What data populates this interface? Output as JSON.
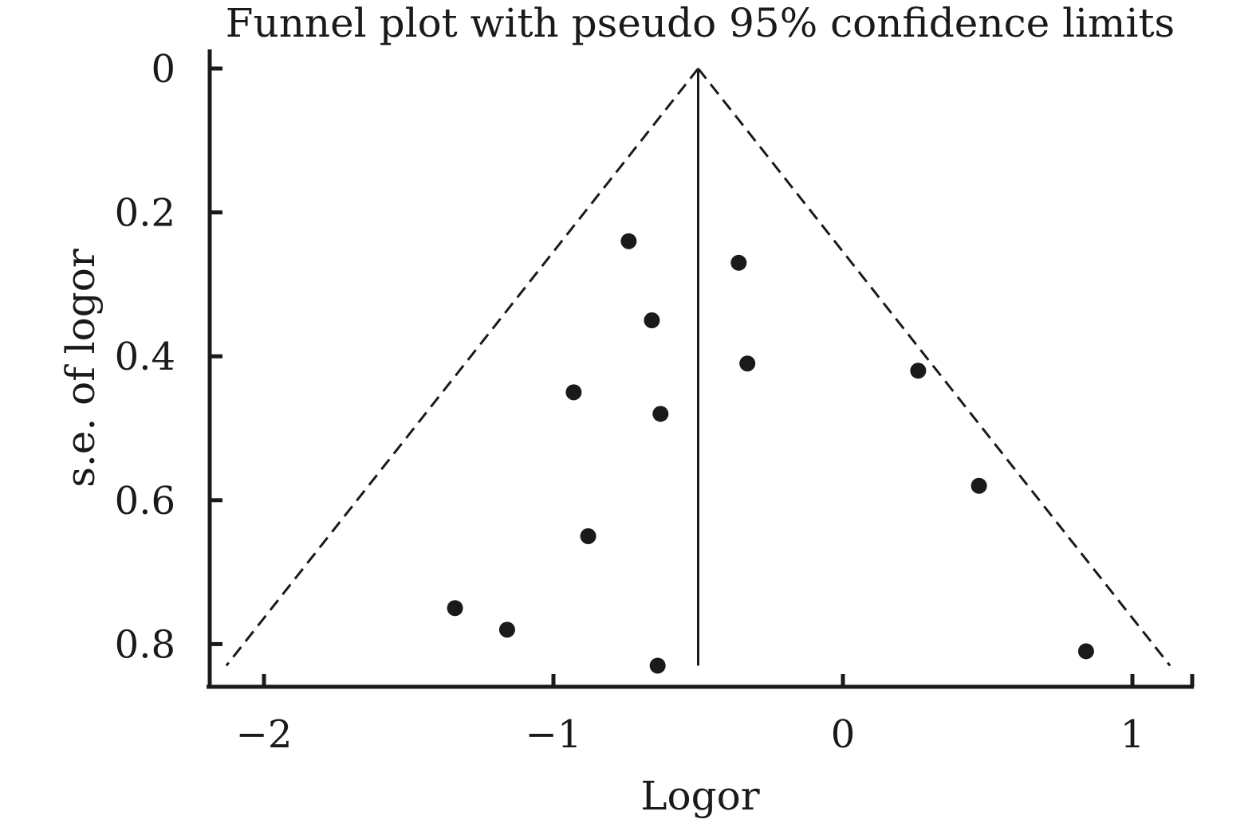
{
  "chart_data": {
    "type": "scatter",
    "title": "Funnel plot with pseudo 95% confidence limits",
    "xlabel": "Logor",
    "ylabel": "s.e. of logor",
    "xlim": [
      -2.2,
      1.2
    ],
    "ylim": [
      0,
      0.86
    ],
    "y_axis_reversed": true,
    "x_ticks": [
      {
        "value": -2,
        "label": "−2"
      },
      {
        "value": -1,
        "label": "−1"
      },
      {
        "value": 0,
        "label": "0"
      },
      {
        "value": 1,
        "label": "1"
      }
    ],
    "y_ticks": [
      {
        "value": 0,
        "label": "0"
      },
      {
        "value": 0.2,
        "label": "0.2"
      },
      {
        "value": 0.4,
        "label": "0.4"
      },
      {
        "value": 0.6,
        "label": "0.6"
      },
      {
        "value": 0.8,
        "label": "0.8"
      }
    ],
    "grid": false,
    "pooled_estimate": -0.5,
    "ci_lines": {
      "style": "dashed",
      "apex": [
        -0.5,
        0
      ],
      "left_end": [
        -2.13,
        0.83
      ],
      "right_end": [
        1.13,
        0.83
      ]
    },
    "center_line": {
      "style": "solid",
      "x": -0.5,
      "y_range": [
        0,
        0.83
      ]
    },
    "points": [
      {
        "x": -0.74,
        "y": 0.24
      },
      {
        "x": -0.36,
        "y": 0.27
      },
      {
        "x": -0.66,
        "y": 0.35
      },
      {
        "x": -0.33,
        "y": 0.41
      },
      {
        "x": 0.26,
        "y": 0.42
      },
      {
        "x": -0.93,
        "y": 0.45
      },
      {
        "x": -0.63,
        "y": 0.48
      },
      {
        "x": 0.47,
        "y": 0.58
      },
      {
        "x": -0.88,
        "y": 0.65
      },
      {
        "x": -1.34,
        "y": 0.75
      },
      {
        "x": -1.16,
        "y": 0.78
      },
      {
        "x": 0.84,
        "y": 0.81
      },
      {
        "x": -0.64,
        "y": 0.83
      }
    ],
    "colors": {
      "ink": "#1a1a1a",
      "background": "#ffffff"
    }
  }
}
